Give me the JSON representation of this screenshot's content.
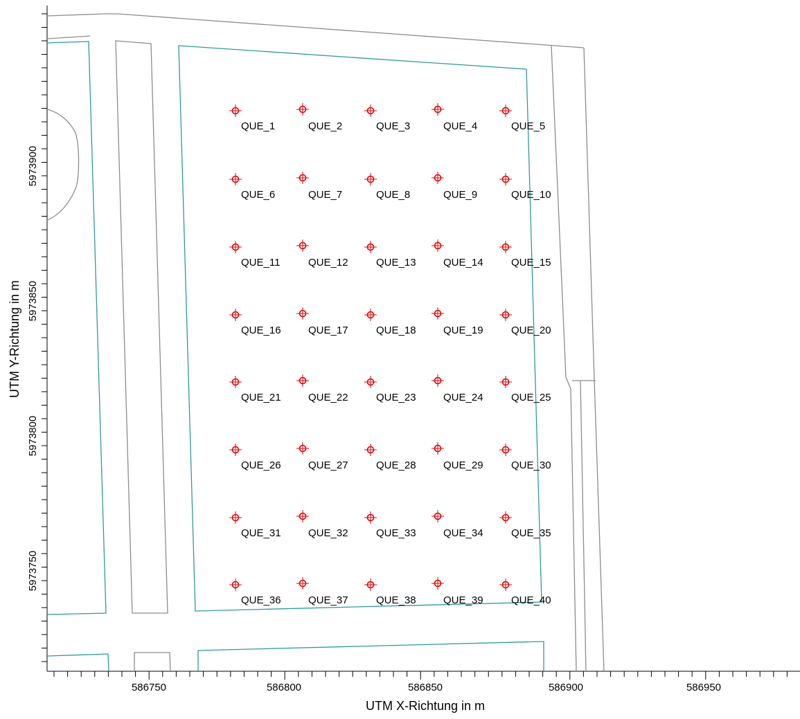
{
  "map": {
    "x_axis_title": "UTM X-Richtung in m",
    "y_axis_title": "UTM Y-Richtung in m",
    "x_ticks": [
      "586750",
      "586800",
      "586850",
      "586900",
      "586950"
    ],
    "y_ticks": [
      "5973900",
      "5973850",
      "5973800",
      "5973750"
    ],
    "marker_color": "#e00000",
    "sources": [
      "QUE_1",
      "QUE_2",
      "QUE_3",
      "QUE_4",
      "QUE_5",
      "QUE_6",
      "QUE_7",
      "QUE_8",
      "QUE_9",
      "QUE_10",
      "QUE_11",
      "QUE_12",
      "QUE_13",
      "QUE_14",
      "QUE_15",
      "QUE_16",
      "QUE_17",
      "QUE_18",
      "QUE_19",
      "QUE_20",
      "QUE_21",
      "QUE_22",
      "QUE_23",
      "QUE_24",
      "QUE_25",
      "QUE_26",
      "QUE_27",
      "QUE_28",
      "QUE_29",
      "QUE_30",
      "QUE_31",
      "QUE_32",
      "QUE_33",
      "QUE_34",
      "QUE_35",
      "QUE_36",
      "QUE_37",
      "QUE_38",
      "QUE_39",
      "QUE_40"
    ]
  }
}
